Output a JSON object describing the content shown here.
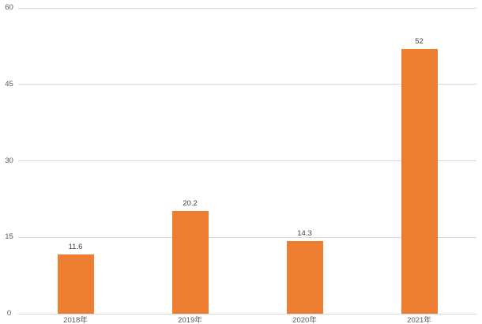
{
  "chart_data": {
    "type": "bar",
    "title": "",
    "categories": [
      "2018年",
      "2019年",
      "2020年",
      "2021年"
    ],
    "series": [
      {
        "name": "",
        "values": [
          11.6,
          20.2,
          14.3,
          52
        ]
      }
    ],
    "data_labels": [
      "11.6",
      "20.2",
      "14.3",
      "52"
    ],
    "xlabel": "",
    "ylabel": "",
    "ylim": [
      0,
      60
    ],
    "yticks": [
      0,
      15,
      30,
      45,
      60
    ],
    "grid": true,
    "legend": false,
    "colors": {
      "bar_fill": "#ED7D31",
      "gridline": "#D9D9D9",
      "axis_line": "#D9D9D9",
      "tick_label": "#595959",
      "data_label": "#404040",
      "background": "#FFFFFF"
    }
  }
}
